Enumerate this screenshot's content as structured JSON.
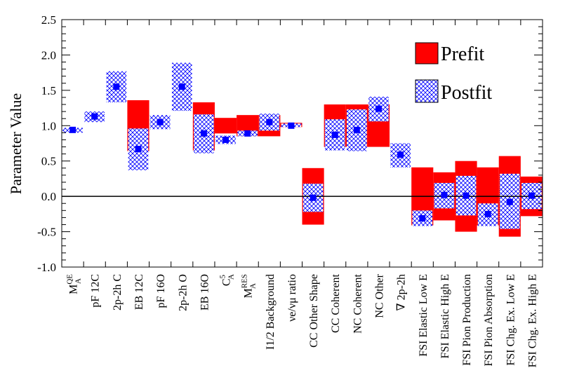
{
  "chart_data": {
    "type": "bar",
    "ylabel": "Parameter Value",
    "ylim": [
      -1.0,
      2.5
    ],
    "yticks": [
      "-1.0",
      "-0.5",
      "0.0",
      "0.5",
      "1.0",
      "1.5",
      "2.0",
      "2.5"
    ],
    "legend_position": "top-right",
    "colors": {
      "prefit": "#ff0000",
      "postfit_hatch": "#0000ff",
      "postfit_marker": "#0000ff",
      "axis": "#000000"
    },
    "categories": [
      "M_A^QE",
      "p_F ^12C",
      "2p-2h C",
      "E_B ^12C",
      "p_F ^16O",
      "2p-2h O",
      "E_B ^16O",
      "C_A^5",
      "M_A^RES",
      "I_1/2 Background",
      "ν_e/ν_μ ratio",
      "CC Other Shape",
      "CC Coherent",
      "NC Coherent",
      "NC Other",
      "∇ 2p-2h",
      "FSI Elastic Low E",
      "FSI Elastic High E",
      "FSI Pion Production",
      "FSI Pion Absorption",
      "FSI Chg. Ex. Low E",
      "FSI Chg. Ex. High E"
    ],
    "series": [
      {
        "name": "Prefit",
        "ranges": [
          null,
          null,
          null,
          [
            0.64,
            1.36
          ],
          null,
          null,
          [
            0.65,
            1.33
          ],
          [
            0.89,
            1.11
          ],
          [
            0.85,
            1.15
          ],
          [
            0.85,
            1.15
          ],
          [
            0.98,
            1.04
          ],
          [
            -0.4,
            0.4
          ],
          [
            0.7,
            1.3
          ],
          [
            0.7,
            1.3
          ],
          [
            0.7,
            1.3
          ],
          null,
          [
            -0.41,
            0.41
          ],
          [
            -0.34,
            0.34
          ],
          [
            -0.5,
            0.5
          ],
          [
            -0.41,
            0.41
          ],
          [
            -0.57,
            0.57
          ],
          [
            -0.28,
            0.28
          ]
        ]
      },
      {
        "name": "Postfit",
        "central": [
          0.94,
          1.13,
          1.55,
          0.67,
          1.05,
          1.55,
          0.89,
          0.8,
          0.89,
          1.05,
          1.0,
          -0.02,
          0.87,
          0.94,
          1.24,
          0.59,
          -0.31,
          0.02,
          0.01,
          -0.25,
          -0.08,
          0.01
        ],
        "ranges": [
          [
            0.9,
            0.97
          ],
          [
            1.05,
            1.2
          ],
          [
            1.33,
            1.77
          ],
          [
            0.37,
            0.96
          ],
          [
            0.95,
            1.15
          ],
          [
            1.21,
            1.89
          ],
          [
            0.61,
            1.16
          ],
          [
            0.74,
            0.86
          ],
          [
            0.85,
            0.93
          ],
          [
            0.93,
            1.17
          ],
          [
            0.98,
            1.03
          ],
          [
            -0.22,
            0.18
          ],
          [
            0.65,
            1.09
          ],
          [
            0.64,
            1.23
          ],
          [
            1.06,
            1.41
          ],
          [
            0.41,
            0.75
          ],
          [
            -0.42,
            -0.2
          ],
          [
            -0.17,
            0.19
          ],
          [
            -0.27,
            0.29
          ],
          [
            -0.42,
            -0.1
          ],
          [
            -0.46,
            0.32
          ],
          [
            -0.18,
            0.19
          ]
        ]
      }
    ],
    "legend": [
      "Prefit",
      "Postfit"
    ]
  }
}
